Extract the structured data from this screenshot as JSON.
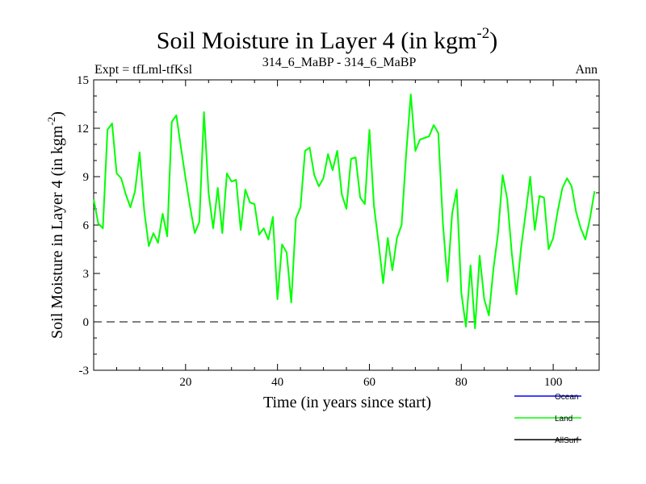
{
  "chart_data": {
    "type": "line",
    "title": "Soil Moisture in Layer 4 (in kgm",
    "title_superscript": "-2",
    "title_close": ")",
    "left_subtitle": "Expt = tfLml-tfKsl",
    "center_subtitle": "314_6_MaBP - 314_6_MaBP",
    "right_subtitle": "Ann",
    "xlabel": "Time (in years since start)",
    "ylabel": "Soil Moisture in Layer 4 (in kgm",
    "ylabel_superscript": "-2",
    "ylabel_close": ")",
    "xlim": [
      0,
      110
    ],
    "ylim": [
      -3,
      15
    ],
    "xticks": [
      20,
      40,
      60,
      80,
      100
    ],
    "xtick_labels": [
      "20",
      "40",
      "60",
      "80",
      "100"
    ],
    "yticks": [
      -3,
      0,
      3,
      6,
      9,
      12,
      15
    ],
    "ytick_labels": [
      "-3",
      "0",
      "3",
      "6",
      "9",
      "12",
      "15"
    ],
    "zero_line": 0,
    "legend": [
      {
        "name": "Ocean",
        "color": "#0000ff"
      },
      {
        "name": "Land",
        "color": "#00ff00"
      },
      {
        "name": "AllSurf",
        "color": "#000000"
      }
    ],
    "series": [
      {
        "name": "Land",
        "color": "#00ff00",
        "x_start": 0,
        "x_step": 1,
        "values": [
          7.6,
          6.1,
          5.8,
          11.9,
          12.3,
          9.2,
          8.9,
          7.9,
          7.1,
          8.1,
          10.5,
          6.9,
          4.7,
          5.5,
          4.9,
          6.7,
          5.3,
          12.4,
          12.8,
          10.8,
          8.9,
          7.1,
          5.5,
          6.2,
          13.0,
          8.0,
          5.8,
          8.3,
          5.5,
          9.2,
          8.7,
          8.8,
          5.7,
          8.2,
          7.4,
          7.3,
          5.4,
          5.8,
          5.1,
          6.5,
          1.4,
          4.8,
          4.3,
          1.2,
          6.4,
          7.1,
          10.6,
          10.8,
          9.1,
          8.4,
          8.9,
          10.4,
          9.4,
          10.6,
          7.9,
          7.0,
          10.1,
          10.2,
          7.7,
          7.3,
          11.9,
          7.2,
          4.9,
          2.4,
          5.2,
          3.2,
          5.2,
          6.0,
          10.4,
          14.1,
          10.6,
          11.3,
          11.4,
          11.5,
          12.2,
          11.7,
          6.1,
          2.5,
          6.7,
          8.2,
          1.8,
          -0.3,
          3.5,
          -0.4,
          4.1,
          1.4,
          0.4,
          3.3,
          5.5,
          9.1,
          7.6,
          4.2,
          1.7,
          4.6,
          6.7,
          9.0,
          5.7,
          7.8,
          7.7,
          4.5,
          5.2,
          6.9,
          8.3,
          8.9,
          8.4,
          6.8,
          5.8,
          5.1,
          6.4,
          8.1
        ]
      }
    ]
  }
}
